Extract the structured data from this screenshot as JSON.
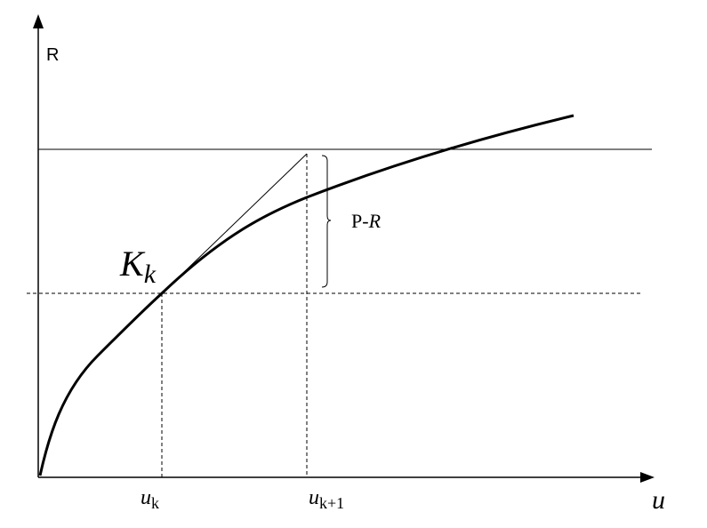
{
  "axes": {
    "y_label": "R",
    "x_label": "u"
  },
  "point_label": {
    "main": "K",
    "sub": "k"
  },
  "annotation": {
    "prefix": "P-",
    "italic": "R"
  },
  "ticks": [
    {
      "main": "u",
      "sub": "k"
    },
    {
      "main": "u",
      "sub": "k+1"
    }
  ]
}
